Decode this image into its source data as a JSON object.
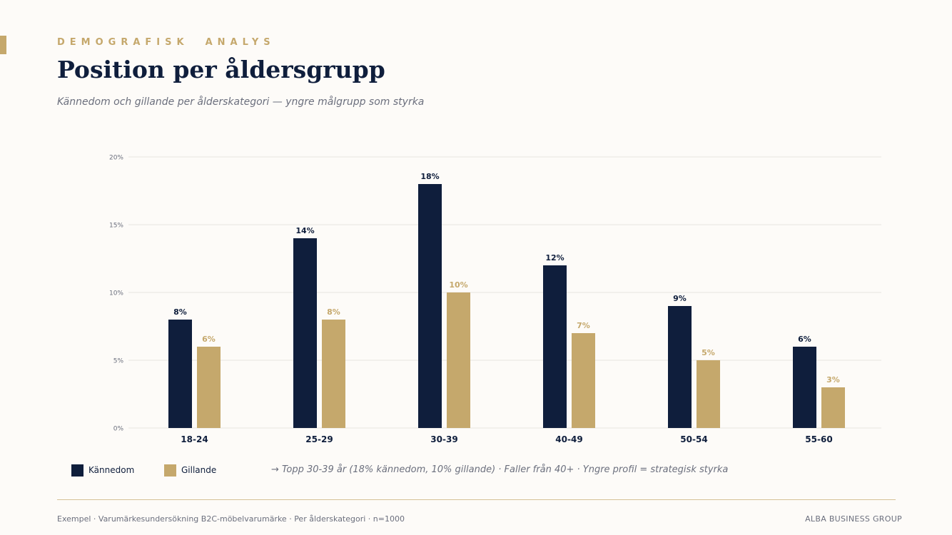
{
  "header": {
    "kicker": "DEMOGRAFISK  ANALYS",
    "title": "Position per åldersgrupp",
    "subtitle": "Kännedom och gillande per ålderskategori — yngre målgrupp som styrka"
  },
  "colors": {
    "navy": "#0f1e3c",
    "gold": "#c5a86c",
    "grid": "#e6e4df",
    "muted": "#6b6f7d"
  },
  "chart_data": {
    "type": "bar",
    "categories": [
      "18-24",
      "25-29",
      "30-39",
      "40-49",
      "50-54",
      "55-60"
    ],
    "series": [
      {
        "name": "Kännedom",
        "values": [
          8,
          14,
          18,
          12,
          9,
          6
        ],
        "labels": [
          "8%",
          "14%",
          "18%",
          "12%",
          "9%",
          "6%"
        ],
        "color": "#0f1e3c"
      },
      {
        "name": "Gillande",
        "values": [
          6,
          8,
          10,
          7,
          5,
          3
        ],
        "labels": [
          "6%",
          "8%",
          "10%",
          "7%",
          "5%",
          "3%"
        ],
        "color": "#c5a86c"
      }
    ],
    "ylim": [
      0,
      20
    ],
    "yticks": [
      0,
      5,
      10,
      15,
      20
    ],
    "ytick_labels": [
      "0%",
      "5%",
      "10%",
      "15%",
      "20%"
    ],
    "grid": true,
    "legend": "bottom-left"
  },
  "note": "→ Topp 30-39 år (18% kännedom, 10% gillande) · Faller från 40+ · Yngre profil = strategisk styrka",
  "footer": {
    "source": "Exempel · Varumärkesundersökning B2C-möbelvarumärke · Per ålderskategori · n=1000",
    "brand": "ALBA BUSINESS GROUP"
  }
}
